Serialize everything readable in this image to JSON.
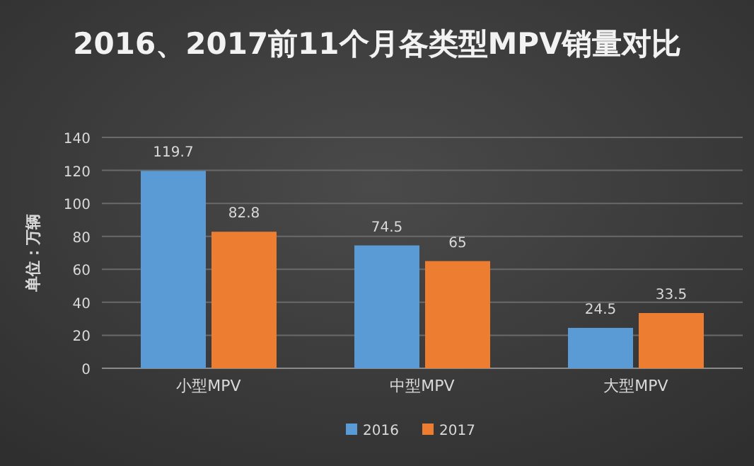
{
  "chart_data": {
    "type": "bar",
    "title": "2016、2017前11个月各类型MPV销量对比",
    "ylabel": "单位：万辆",
    "categories": [
      "小型MPV",
      "中型MPV",
      "大型MPV"
    ],
    "series": [
      {
        "name": "2016",
        "color": "#5b9bd5",
        "values": [
          119.7,
          74.5,
          24.5
        ]
      },
      {
        "name": "2017",
        "color": "#ed7d31",
        "values": [
          82.8,
          65,
          33.5
        ]
      }
    ],
    "ylim": [
      0,
      140
    ],
    "yticks": [
      0,
      20,
      40,
      60,
      80,
      100,
      120,
      140
    ],
    "grid": "y",
    "legend": "bottom",
    "data_labels": true
  }
}
